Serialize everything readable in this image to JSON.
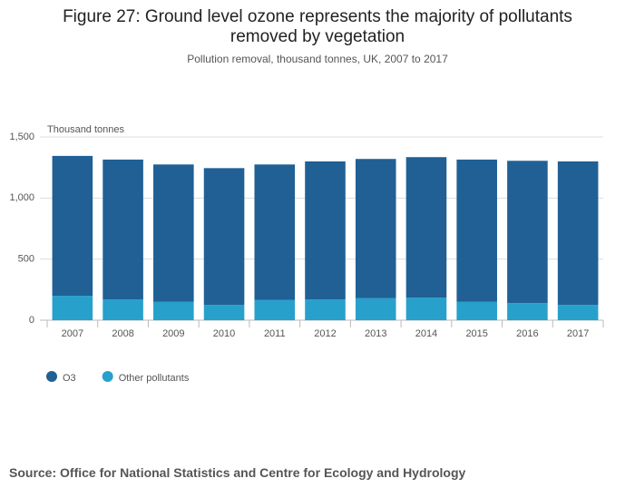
{
  "chart_data": {
    "type": "stacked_bar",
    "title": "Figure 27: Ground level ozone represents the majority of pollutants removed by vegetation",
    "subtitle": "Pollution removal, thousand tonnes, UK, 2007 to 2017",
    "y_label": "Thousand tonnes",
    "categories": [
      "2007",
      "2008",
      "2009",
      "2010",
      "2011",
      "2012",
      "2013",
      "2014",
      "2015",
      "2016",
      "2017"
    ],
    "series": [
      {
        "name": "O3",
        "color": "#206095",
        "values": [
          1145,
          1145,
          1125,
          1120,
          1110,
          1130,
          1140,
          1150,
          1165,
          1165,
          1175
        ]
      },
      {
        "name": "Other pollutants",
        "color": "#27a0cc",
        "values": [
          200,
          170,
          150,
          125,
          165,
          170,
          180,
          185,
          150,
          140,
          125
        ]
      }
    ],
    "ylim": [
      0,
      1500
    ],
    "yticks": [
      0,
      500,
      {
        "value": 1000,
        "label": "1,000"
      },
      {
        "value": 1500,
        "label": "1,500"
      }
    ],
    "grid": true,
    "legend": "bottom-left",
    "source": "Source: Office for National Statistics and Centre for Ecology and Hydrology"
  }
}
